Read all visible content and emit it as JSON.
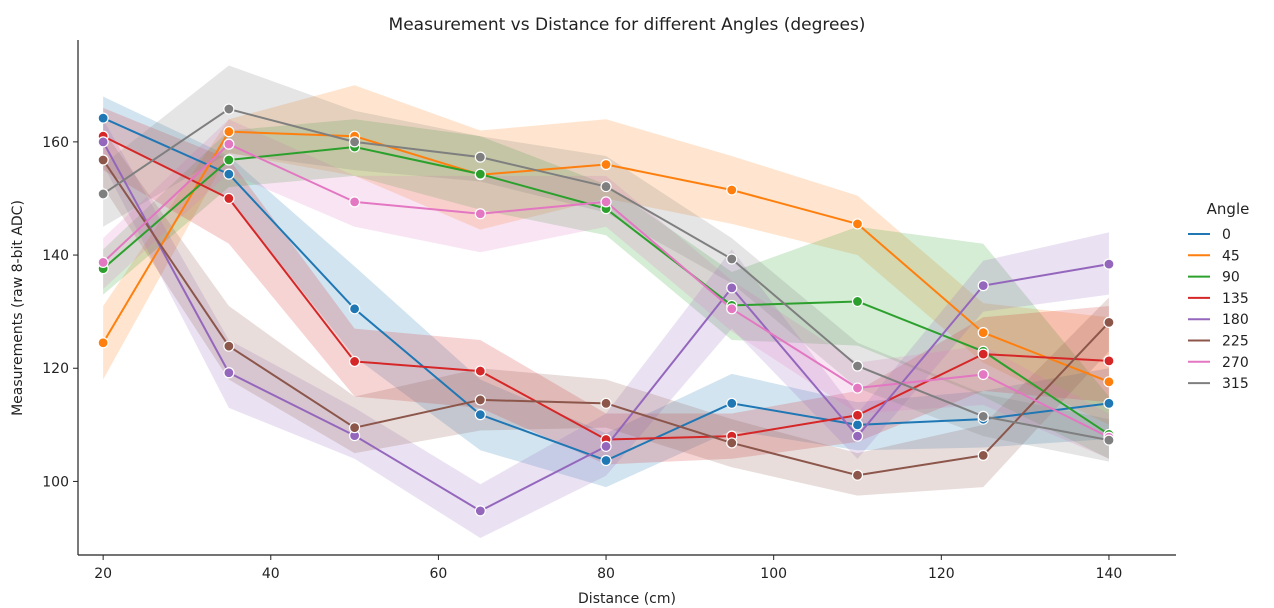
{
  "chart_data": {
    "type": "line",
    "title": "Measurement vs Distance for different Angles (degrees)",
    "xlabel": "Distance (cm)",
    "ylabel": "Measurements (raw 8-bit ADC)",
    "x": [
      20,
      35,
      50,
      65,
      80,
      95,
      110,
      125,
      140
    ],
    "xlim": [
      17,
      148
    ],
    "ylim": [
      87,
      178
    ],
    "xticks": [
      20,
      40,
      60,
      80,
      100,
      120,
      140
    ],
    "yticks": [
      100,
      120,
      140,
      160
    ],
    "grid": false,
    "legend": {
      "title": "Angle",
      "position": "right"
    },
    "series": [
      {
        "name": "0",
        "color": "#1f77b4",
        "values": [
          164.2,
          154.3,
          130.5,
          111.8,
          103.7,
          113.8,
          110.0,
          111.0,
          113.8
        ],
        "lower": [
          161.0,
          150.0,
          122.0,
          105.5,
          99.0,
          109.0,
          105.5,
          106.0,
          107.5
        ],
        "upper": [
          168.0,
          157.5,
          138.0,
          118.0,
          108.5,
          119.0,
          114.0,
          116.0,
          120.0
        ]
      },
      {
        "name": "45",
        "color": "#ff7f0e",
        "values": [
          124.5,
          161.8,
          161.0,
          154.2,
          156.0,
          151.5,
          145.5,
          126.3,
          117.6
        ],
        "lower": [
          118.0,
          158.0,
          154.0,
          144.5,
          150.0,
          145.5,
          140.0,
          121.0,
          110.0
        ],
        "upper": [
          131.0,
          164.0,
          170.0,
          162.0,
          164.0,
          157.5,
          150.5,
          131.5,
          129.0
        ]
      },
      {
        "name": "90",
        "color": "#2ca02c",
        "values": [
          137.6,
          156.8,
          159.1,
          154.3,
          148.2,
          131.1,
          131.8,
          123.0,
          108.3
        ],
        "lower": [
          133.0,
          152.0,
          154.0,
          148.0,
          143.5,
          125.0,
          124.0,
          115.0,
          104.0
        ],
        "upper": [
          141.0,
          162.0,
          164.0,
          161.0,
          152.5,
          137.0,
          145.0,
          142.0,
          115.0
        ]
      },
      {
        "name": "135",
        "color": "#d62728",
        "values": [
          161.0,
          150.0,
          121.2,
          119.5,
          107.4,
          108.0,
          111.7,
          122.5,
          121.3
        ],
        "lower": [
          155.0,
          142.0,
          115.0,
          113.0,
          103.0,
          104.0,
          107.0,
          116.0,
          114.0
        ],
        "upper": [
          166.0,
          157.0,
          127.0,
          125.0,
          112.0,
          112.0,
          116.0,
          129.0,
          131.0
        ]
      },
      {
        "name": "180",
        "color": "#9467bd",
        "values": [
          160.0,
          119.2,
          108.1,
          94.8,
          106.2,
          134.2,
          108.0,
          134.6,
          138.4
        ],
        "lower": [
          156.0,
          113.0,
          104.0,
          90.0,
          101.0,
          127.0,
          104.0,
          130.0,
          133.0
        ],
        "upper": [
          164.0,
          125.0,
          113.0,
          99.5,
          112.0,
          141.0,
          112.0,
          139.0,
          144.0
        ]
      },
      {
        "name": "225",
        "color": "#8c564b",
        "values": [
          156.8,
          123.9,
          109.5,
          114.4,
          113.8,
          106.8,
          101.1,
          104.6,
          128.1
        ],
        "lower": [
          152.0,
          118.0,
          105.0,
          109.0,
          109.5,
          102.5,
          97.5,
          99.0,
          123.0
        ],
        "upper": [
          162.0,
          131.0,
          115.0,
          120.0,
          118.0,
          111.0,
          105.0,
          110.0,
          132.5
        ]
      },
      {
        "name": "270",
        "color": "#e377c2",
        "values": [
          138.7,
          159.6,
          149.4,
          147.3,
          149.4,
          130.5,
          116.5,
          118.9,
          107.8
        ],
        "lower": [
          134.0,
          154.5,
          145.0,
          140.5,
          145.0,
          126.5,
          112.0,
          113.5,
          104.0
        ],
        "upper": [
          143.0,
          164.0,
          154.0,
          154.0,
          154.0,
          135.5,
          121.0,
          124.0,
          112.0
        ]
      },
      {
        "name": "315",
        "color": "#7f7f7f",
        "values": [
          150.8,
          165.8,
          160.0,
          157.3,
          152.1,
          139.3,
          120.4,
          111.5,
          107.3
        ],
        "lower": [
          145.0,
          158.0,
          155.0,
          153.0,
          147.5,
          135.0,
          116.5,
          108.0,
          103.5
        ],
        "upper": [
          156.0,
          173.5,
          165.5,
          161.0,
          157.5,
          143.0,
          124.5,
          115.5,
          111.0
        ]
      }
    ]
  }
}
